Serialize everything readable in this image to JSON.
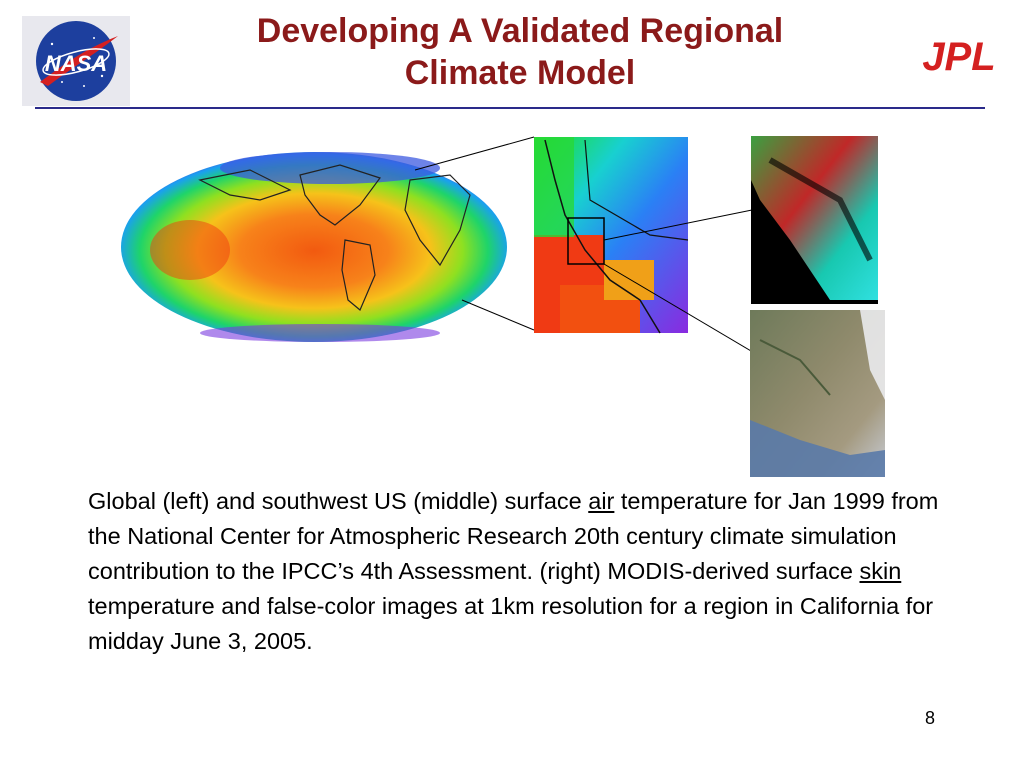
{
  "slide": {
    "title_line1": "Developing A Validated Regional",
    "title_line2": "Climate Model",
    "page_number": "8"
  },
  "logos": {
    "left": "NASA",
    "right": "JPL"
  },
  "caption": {
    "part1": "Global (left) and southwest US (middle) surface ",
    "air": "air",
    "part2": " temperature for Jan 1999 from the National Center for Atmospheric Research 20th century climate simulation contribution to the IPCC’s 4th Assessment. (right) MODIS-derived surface ",
    "skin": "skin",
    "part3": " temperature and false-color images at 1km resolution for a region in California for midday June 3, 2005."
  },
  "colors": {
    "title": "#8b1a1a",
    "rule": "#2a2a8a",
    "jpl": "#d42020",
    "nasa_blue": "#1d3f9e"
  }
}
